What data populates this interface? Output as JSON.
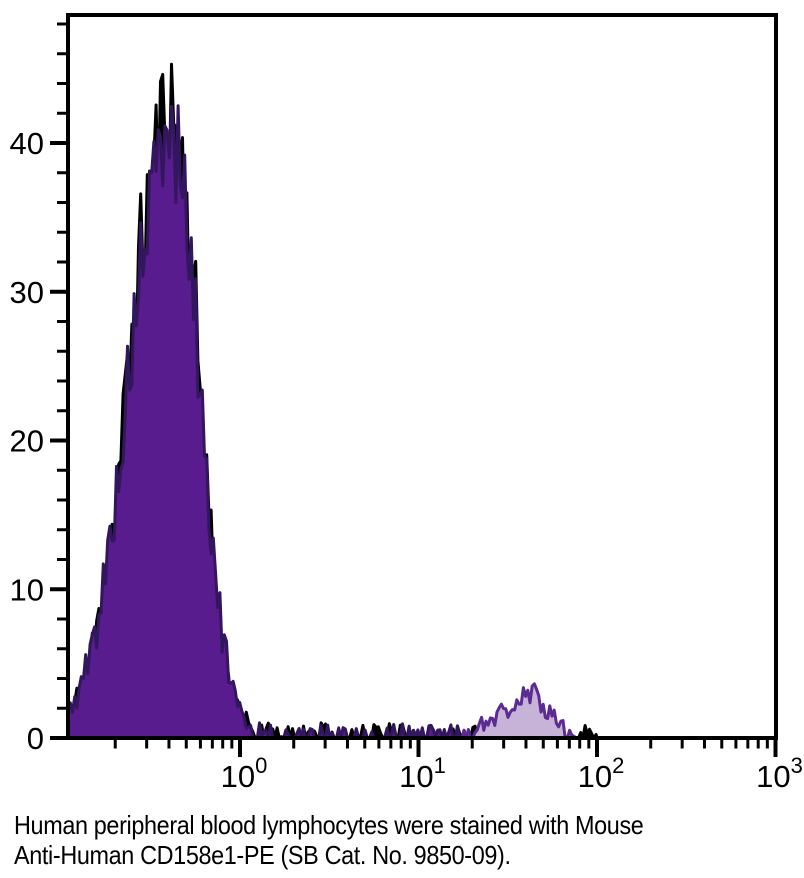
{
  "caption": {
    "line1": "Human peripheral blood lymphocytes were stained with Mouse",
    "line2": "Anti-Human CD158e1-PE (SB Cat. No. 9850-09)."
  },
  "colors": {
    "background": "#ffffff",
    "axis": "#000000",
    "control_fill": "#000000",
    "control_stroke": "#000000",
    "stained_main_fill": "#591C8E",
    "stained_main_stroke": "#33175E",
    "stained_positive_fill": "#C7B2D8",
    "stained_positive_stroke": "#5C2B91",
    "label_text": "#000000"
  },
  "chart_data": {
    "type": "area",
    "subtype": "flow-cytometry-histogram-overlay",
    "title": "",
    "xlabel": "",
    "ylabel": "",
    "x_axis": {
      "scale": "log10",
      "min": 0.108,
      "max": 1000,
      "major_ticks": [
        {
          "value": 1,
          "text": "10",
          "sup": "0"
        },
        {
          "value": 10,
          "text": "10",
          "sup": "1"
        },
        {
          "value": 100,
          "text": "10",
          "sup": "2"
        },
        {
          "value": 1000,
          "text": "10",
          "sup": "3"
        }
      ],
      "minor_tick_digits": [
        2,
        3,
        4,
        5,
        6,
        7,
        8,
        9
      ],
      "minor_tick_decades": [
        -1,
        0,
        1,
        2
      ]
    },
    "y_axis": {
      "scale": "linear",
      "min": 0,
      "max": 48.6,
      "major_ticks": [
        {
          "value": 0,
          "label": "0"
        },
        {
          "value": 10,
          "label": "10"
        },
        {
          "value": 20,
          "label": "20"
        },
        {
          "value": 30,
          "label": "30"
        },
        {
          "value": 40,
          "label": "40"
        }
      ],
      "minor_step": 2
    },
    "grid": false,
    "legend": "none",
    "noise": {
      "sparse_threshold": 0.8,
      "sparse_prob": 0.45
    },
    "series": [
      {
        "name": "control-black-histogram",
        "role": "background-control",
        "fill": "#000000",
        "stroke": "#000000",
        "stroke_width": 3,
        "seed": 11,
        "noise_amp": 0.8,
        "peak_value": 46.5,
        "peak_at_x": 0.41,
        "envelope_log10x_count": [
          [
            -0.963,
            1.3
          ],
          [
            -0.9,
            2.8
          ],
          [
            -0.84,
            5.0
          ],
          [
            -0.78,
            8.5
          ],
          [
            -0.72,
            13.5
          ],
          [
            -0.66,
            20
          ],
          [
            -0.6,
            27.5
          ],
          [
            -0.54,
            34
          ],
          [
            -0.48,
            38.5
          ],
          [
            -0.43,
            41.5
          ],
          [
            -0.39,
            42
          ],
          [
            -0.35,
            40.5
          ],
          [
            -0.31,
            37
          ],
          [
            -0.27,
            31.5
          ],
          [
            -0.23,
            25
          ],
          [
            -0.19,
            18
          ],
          [
            -0.15,
            12
          ],
          [
            -0.11,
            7.5
          ],
          [
            -0.06,
            3.5
          ],
          [
            -0.01,
            1.5
          ],
          [
            0.08,
            0.6
          ],
          [
            0.3,
            0.45
          ],
          [
            0.6,
            0.5
          ],
          [
            0.9,
            0.45
          ],
          [
            1.2,
            0.5
          ],
          [
            1.5,
            0.45
          ],
          [
            1.75,
            0.5
          ],
          [
            1.95,
            0.45
          ],
          [
            2.0,
            0.3
          ]
        ]
      },
      {
        "name": "stained-negative-population",
        "role": "antibody-stained-main-peak",
        "fill": "#591C8E",
        "stroke": "#33175E",
        "stroke_width": 3,
        "seed": 5,
        "noise_amp": 0.6,
        "peak_value": 41.9,
        "peak_at_x": 0.4,
        "envelope_log10x_count": [
          [
            -0.963,
            1.6
          ],
          [
            -0.9,
            3.2
          ],
          [
            -0.84,
            5.5
          ],
          [
            -0.78,
            9
          ],
          [
            -0.72,
            14
          ],
          [
            -0.66,
            20
          ],
          [
            -0.6,
            27
          ],
          [
            -0.54,
            33
          ],
          [
            -0.48,
            37.5
          ],
          [
            -0.43,
            40
          ],
          [
            -0.39,
            40.5
          ],
          [
            -0.35,
            39.5
          ],
          [
            -0.31,
            36.5
          ],
          [
            -0.27,
            31
          ],
          [
            -0.23,
            25
          ],
          [
            -0.19,
            18.5
          ],
          [
            -0.15,
            12.5
          ],
          [
            -0.11,
            8
          ],
          [
            -0.06,
            4
          ],
          [
            -0.01,
            1.8
          ],
          [
            0.06,
            0.8
          ],
          [
            0.2,
            0.55
          ],
          [
            0.4,
            0.5
          ],
          [
            0.6,
            0.55
          ],
          [
            0.8,
            0.5
          ],
          [
            1.0,
            0.55
          ],
          [
            1.23,
            0.5
          ]
        ]
      },
      {
        "name": "stained-positive-population",
        "role": "antibody-stained-positive-peak",
        "fill": "#C7B2D8",
        "stroke": "#5C2B91",
        "stroke_width": 3,
        "seed": 21,
        "noise_amp": 0.6,
        "peak_value": 3.6,
        "peak_at_x": 43,
        "envelope_log10x_count": [
          [
            1.23,
            0.45
          ],
          [
            1.3,
            0.7
          ],
          [
            1.37,
            1.1
          ],
          [
            1.44,
            1.5
          ],
          [
            1.5,
            1.9
          ],
          [
            1.56,
            2.4
          ],
          [
            1.61,
            2.7
          ],
          [
            1.65,
            2.8
          ],
          [
            1.7,
            2.3
          ],
          [
            1.75,
            1.6
          ],
          [
            1.8,
            0.9
          ],
          [
            1.85,
            0.4
          ],
          [
            1.9,
            0.15
          ]
        ]
      }
    ]
  }
}
